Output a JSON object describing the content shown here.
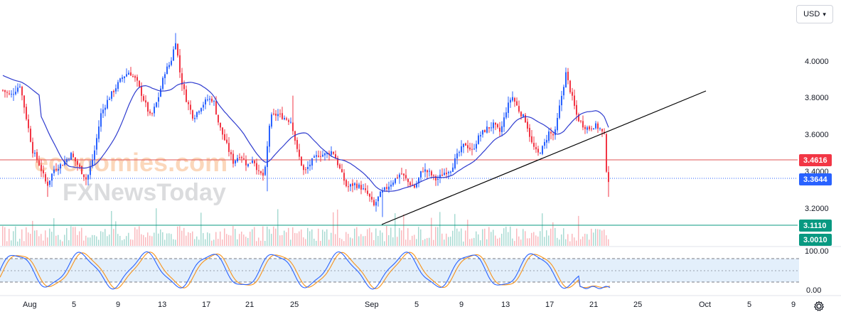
{
  "currency_selector": {
    "label": "USD",
    "icon": "chevron-down-icon"
  },
  "settings_icon": "gear-icon",
  "watermark": {
    "brand_top": "economies.com",
    "brand_bottom": "FXNewsToday"
  },
  "colors": {
    "up": "#2962ff",
    "down": "#f23645",
    "ma": "#2f3ccf",
    "trendline": "#000000",
    "resistance": "#e05555",
    "support": "#089981",
    "stoch_k": "#2962ff",
    "stoch_d": "#f7931a",
    "stoch_band": "#e3effb"
  },
  "price_axis": {
    "ticks": [
      "4.0000",
      "3.8000",
      "3.6000",
      "3.4000",
      "3.2000"
    ]
  },
  "price_tags": [
    {
      "name": "resistance-tag",
      "value": "3.4616",
      "color": "#f23645"
    },
    {
      "name": "last-price-tag",
      "value": "3.3644",
      "color": "#2962ff"
    },
    {
      "name": "support-tag-upper",
      "value": "3.1110",
      "color": "#089981"
    },
    {
      "name": "support-tag-lower",
      "value": "3.0010",
      "color": "#089981"
    }
  ],
  "oscillator_axis": {
    "ticks": [
      "100.00",
      "0.00"
    ]
  },
  "time_axis": {
    "labels": [
      "Aug",
      "5",
      "9",
      "13",
      "17",
      "21",
      "25",
      "Sep",
      "5",
      "9",
      "13",
      "17",
      "21",
      "25",
      "Oct",
      "5",
      "9"
    ]
  },
  "chart_data": {
    "type": "candlestick",
    "series": [
      {
        "name": "price",
        "type": "candlestick",
        "approx_range": [
          3.26,
          4.16
        ],
        "last_close": 3.3644,
        "recent_high": 3.97,
        "recent_low": 3.27
      },
      {
        "name": "moving_average",
        "type": "line"
      },
      {
        "name": "volume",
        "type": "bar"
      },
      {
        "name": "stochastic_k",
        "type": "line"
      },
      {
        "name": "stochastic_d",
        "type": "line"
      }
    ],
    "horizontal_levels": [
      3.4616,
      3.3644,
      3.111,
      3.001
    ],
    "trendline": {
      "from": {
        "date": "Aug 31",
        "price": 3.12
      },
      "to": {
        "date": "Sep 29",
        "price": 3.84
      }
    },
    "ylim": [
      3.0,
      4.22
    ],
    "oscillator": {
      "range": [
        0,
        100
      ],
      "bands": [
        20,
        80
      ]
    },
    "grid": false,
    "legend": "none"
  }
}
